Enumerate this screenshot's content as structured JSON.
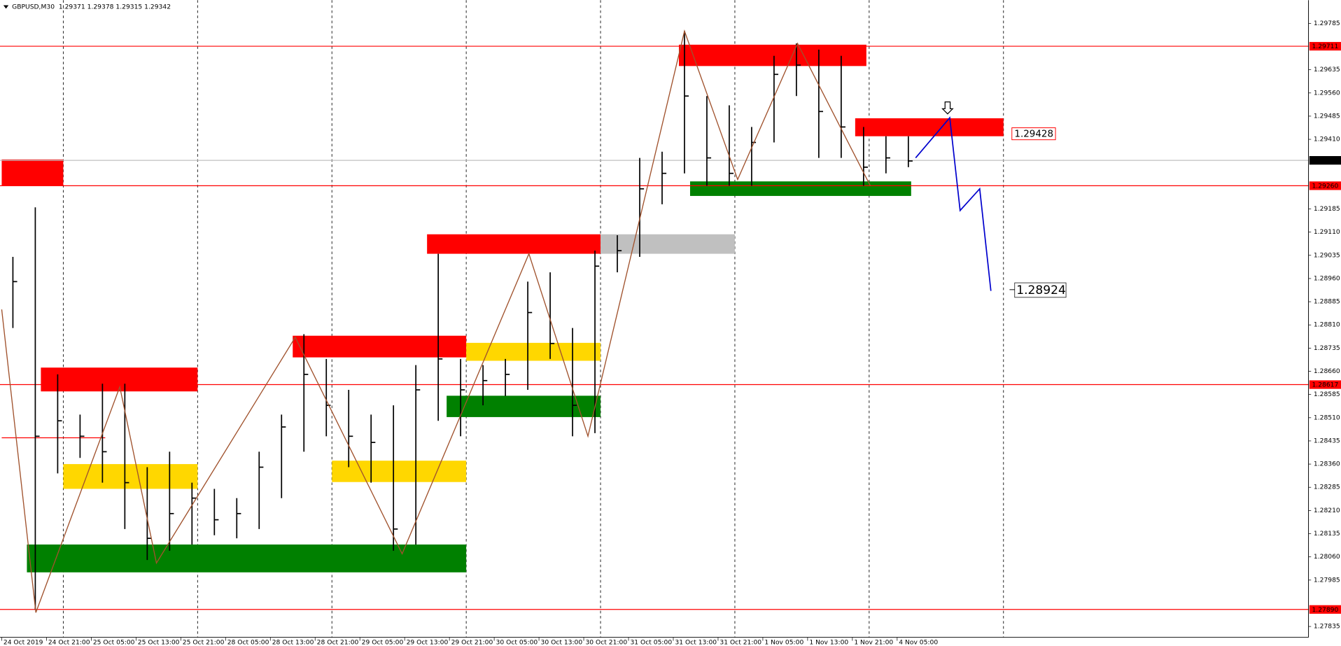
{
  "chart_data": {
    "type": "candlestick",
    "title": "GBPUSD,M30  1.29371 1.29378 1.29315 1.29342",
    "xlim": [
      0,
      467
    ],
    "ylim": [
      1.278,
      1.2986
    ],
    "yticks": [
      1.29785,
      1.29635,
      {
        "value": 1.2956,
        "label": "1.29560"
      },
      1.29485,
      {
        "value": 1.2941,
        "label": "1.29410"
      },
      1.29185,
      {
        "value": 1.2911,
        "label": "1.29110"
      },
      1.29035,
      {
        "value": 1.2896,
        "label": "1.28960"
      },
      1.28885,
      {
        "value": 1.2881,
        "label": "1.28810"
      },
      1.28735,
      {
        "value": 1.2866,
        "label": "1.28660"
      },
      1.28585,
      {
        "value": 1.2851,
        "label": "1.28510"
      },
      1.28435,
      {
        "value": 1.2836,
        "label": "1.28360"
      },
      1.28285,
      {
        "value": 1.2821,
        "label": "1.28210"
      },
      1.28135,
      {
        "value": 1.2806,
        "label": "1.28060"
      },
      1.27985,
      1.27835
    ],
    "xticks": [
      {
        "value": 0,
        "label": "24 Oct 2019"
      },
      {
        "value": 16,
        "label": "24 Oct 21:00"
      },
      {
        "value": 32,
        "label": "25 Oct 05:00"
      },
      {
        "value": 48,
        "label": "25 Oct 13:00"
      },
      {
        "value": 64,
        "label": "25 Oct 21:00"
      },
      {
        "value": 80,
        "label": "28 Oct 05:00"
      },
      {
        "value": 96,
        "label": "28 Oct 13:00"
      },
      {
        "value": 112,
        "label": "28 Oct 21:00"
      },
      {
        "value": 128,
        "label": "29 Oct 05:00"
      },
      {
        "value": 144,
        "label": "29 Oct 13:00"
      },
      {
        "value": 160,
        "label": "29 Oct 21:00"
      },
      {
        "value": 176,
        "label": "30 Oct 05:00"
      },
      {
        "value": 192,
        "label": "30 Oct 13:00"
      },
      {
        "value": 208,
        "label": "30 Oct 21:00"
      },
      {
        "value": 224,
        "label": "31 Oct 05:00"
      },
      {
        "value": 240,
        "label": "31 Oct 13:00"
      },
      {
        "value": 256,
        "label": "31 Oct 21:00"
      },
      {
        "value": 272,
        "label": "1 Nov 05:00"
      },
      {
        "value": 288,
        "label": "1 Nov 13:00"
      },
      {
        "value": 304,
        "label": "1 Nov 21:00"
      },
      {
        "value": 320,
        "label": "4 Nov 05:00"
      }
    ],
    "separators": [
      22,
      70,
      118,
      166,
      214,
      262,
      310,
      358
    ],
    "candles": {
      "color": "#000000",
      "x": [
        4,
        12,
        20,
        28,
        36,
        44,
        52,
        60,
        68,
        76,
        84,
        92,
        100,
        108,
        116,
        124,
        132,
        140,
        148,
        156,
        164,
        172,
        180,
        188,
        196,
        204,
        212,
        220,
        228,
        236,
        244,
        252,
        260,
        268,
        276,
        284,
        292,
        300,
        308,
        316,
        324
      ],
      "high": [
        1.2903,
        1.2919,
        1.2865,
        1.2852,
        1.2862,
        1.2862,
        1.2835,
        1.284,
        1.283,
        1.2828,
        1.2825,
        1.284,
        1.2852,
        1.2878,
        1.287,
        1.286,
        1.2852,
        1.2855,
        1.2868,
        1.2904,
        1.287,
        1.2868,
        1.287,
        1.2895,
        1.2898,
        1.288,
        1.2905,
        1.291,
        1.2935,
        1.2937,
        1.2976,
        1.2955,
        1.2952,
        1.2945,
        1.2968,
        1.2972,
        1.297,
        1.2968,
        1.2945,
        1.2942,
        1.2942
      ],
      "low": [
        1.288,
        1.2789,
        1.2833,
        1.2838,
        1.283,
        1.2815,
        1.2805,
        1.2808,
        1.281,
        1.2813,
        1.2812,
        1.2815,
        1.2825,
        1.284,
        1.2845,
        1.2835,
        1.283,
        1.2808,
        1.281,
        1.285,
        1.2845,
        1.2855,
        1.2858,
        1.286,
        1.287,
        1.2845,
        1.2846,
        1.2898,
        1.2903,
        1.292,
        1.293,
        1.2926,
        1.2926,
        1.2926,
        1.294,
        1.2955,
        1.2935,
        1.2935,
        1.2926,
        1.293,
        1.2932
      ],
      "close": [
        1.2895,
        1.2845,
        1.285,
        1.2845,
        1.284,
        1.283,
        1.2812,
        1.282,
        1.2825,
        1.2818,
        1.282,
        1.2835,
        1.2848,
        1.2865,
        1.2855,
        1.2845,
        1.2843,
        1.2815,
        1.286,
        1.287,
        1.286,
        1.2863,
        1.2865,
        1.2885,
        1.2875,
        1.2855,
        1.29,
        1.2905,
        1.2925,
        1.293,
        1.2955,
        1.2935,
        1.293,
        1.294,
        1.2962,
        1.2965,
        1.295,
        1.2945,
        1.2932,
        1.2935,
        1.2934
      ]
    },
    "zones": [
      {
        "x0": 0,
        "x1": 22,
        "top": 1.29345,
        "bottom": 1.2926,
        "color": "#ff0000"
      },
      {
        "x0": 14,
        "x1": 70,
        "top": 1.28672,
        "bottom": 1.28595,
        "color": "#ff0000"
      },
      {
        "x0": 22,
        "x1": 70,
        "top": 1.2836,
        "bottom": 1.2828,
        "color": "#ffd700"
      },
      {
        "x0": 9,
        "x1": 166,
        "top": 1.281,
        "bottom": 1.2801,
        "color": "#008000"
      },
      {
        "x0": 104,
        "x1": 166,
        "top": 1.28775,
        "bottom": 1.28705,
        "color": "#ff0000"
      },
      {
        "x0": 118,
        "x1": 166,
        "top": 1.28371,
        "bottom": 1.28302,
        "color": "#ffd700"
      },
      {
        "x0": 152,
        "x1": 214,
        "top": 1.29103,
        "bottom": 1.2904,
        "color": "#ff0000"
      },
      {
        "x0": 166,
        "x1": 214,
        "top": 1.28752,
        "bottom": 1.28694,
        "color": "#ffd700"
      },
      {
        "x0": 159,
        "x1": 214,
        "top": 1.28581,
        "bottom": 1.28512,
        "color": "#008000"
      },
      {
        "x0": 214,
        "x1": 262,
        "top": 1.29103,
        "bottom": 1.2904,
        "color": "#c0c0c0"
      },
      {
        "x0": 242,
        "x1": 309,
        "top": 1.29716,
        "bottom": 1.29647,
        "color": "#ff0000"
      },
      {
        "x0": 246,
        "x1": 325,
        "top": 1.29274,
        "bottom": 1.29227,
        "color": "#008000"
      },
      {
        "x0": 305,
        "x1": 358,
        "top": 1.29478,
        "bottom": 1.2942,
        "color": "#ff0000"
      }
    ],
    "hlines": [
      {
        "value": 1.29711,
        "color": "#ff0000"
      },
      {
        "value": {
          "value": 1.2926,
          "label": "1.29260"
        },
        "color": "#ff0000"
      },
      {
        "value": 1.28617,
        "color": "#ff0000"
      },
      {
        "value": {
          "value": 1.2789,
          "label": "1.27890"
        },
        "color": "#ff0000"
      },
      {
        "value": 1.29342,
        "color": "#000000"
      }
    ],
    "segments": [
      {
        "x0": 0,
        "x1": 37,
        "value": 1.28445,
        "color": "#ff0000"
      }
    ],
    "zigzag": {
      "color": "#a0522d",
      "x": [
        0,
        12.2,
        42.2,
        55.3,
        104.9,
        143.1,
        188.4,
        209.5,
        244,
        263,
        284.4,
        310.4
      ],
      "y": [
        1.2886,
        1.2788,
        1.2861,
        1.2804,
        1.2877,
        1.2807,
        1.2904,
        1.2845,
        1.2976,
        1.2928,
        1.2972,
        1.2926
      ]
    },
    "forecast": {
      "color": "#0000cd",
      "x": [
        326.6,
        338.8,
        342.5,
        349.5,
        353.5
      ],
      "y": [
        1.2935,
        1.2948,
        1.2918,
        1.2925,
        1.2892
      ]
    },
    "annotations": [
      {
        "value": 1.29428,
        "x": 361,
        "color": "#ff0000",
        "boxed": true
      },
      {
        "value": 1.28924,
        "x": 362,
        "color": "#000000",
        "boxed": false
      }
    ]
  }
}
